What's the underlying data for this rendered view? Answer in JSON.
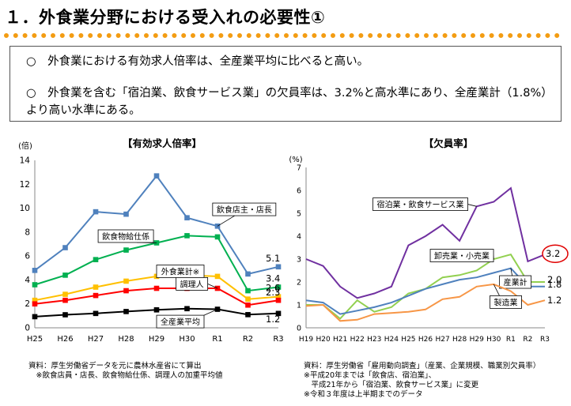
{
  "header": {
    "title": "１．外食業分野における受入れの必要性①"
  },
  "summary": {
    "bullet1": "○　外食業における有効求人倍率は、全産業平均に比べると高い。",
    "bullet2": "○　外食業を含む「宿泊業、飲食サービス業」の欠員率は、3.2%と高水準にあり、全産業計（1.8%）より高い水準にある。"
  },
  "sources": {
    "left": "資料：厚生労働省データを元に農林水産省にて算出\n　※飲食店員・店長、飲食物給仕係、調理人の加重平均値",
    "right": "資料：厚生労働省「雇用動向調査」（産業、企業規模、職業別欠員率）\n※平成20年までは「飲食店、宿泊業」、\n　平成21年から「宿泊業、飲食サービス業」に変更\n※令和３年度は上半期までのデータ"
  },
  "chart_data": [
    {
      "type": "line",
      "title": "【有効求人倍率】",
      "ylabel": "(倍)",
      "ylim": [
        0,
        14
      ],
      "yticks": [
        0,
        2,
        4,
        6,
        8,
        10,
        12,
        14
      ],
      "categories": [
        "H25",
        "H26",
        "H27",
        "H28",
        "H29",
        "H30",
        "R1",
        "R2",
        "R3"
      ],
      "series": [
        {
          "name": "飲食店主・店長",
          "color": "#4f81bd",
          "values": [
            4.8,
            6.7,
            9.7,
            9.5,
            12.7,
            9.2,
            8.5,
            4.5,
            5.1
          ],
          "end_label": "5.1"
        },
        {
          "name": "飲食物給仕係",
          "color": "#00b050",
          "values": [
            3.6,
            4.4,
            5.7,
            6.5,
            7.1,
            7.7,
            7.6,
            3.1,
            3.4
          ],
          "end_label": "3.4"
        },
        {
          "name": "外食業計※",
          "color": "#ffc000",
          "values": [
            2.3,
            2.8,
            3.4,
            3.9,
            4.3,
            4.4,
            4.3,
            2.4,
            2.6
          ],
          "end_label": "2.6"
        },
        {
          "name": "調理人",
          "color": "#ff0000",
          "values": [
            2.0,
            2.3,
            2.7,
            3.1,
            3.3,
            3.3,
            3.3,
            1.9,
            2.3
          ],
          "end_label": "2.3"
        },
        {
          "name": "全産業平均",
          "color": "#000000",
          "values": [
            0.93,
            1.09,
            1.2,
            1.36,
            1.5,
            1.6,
            1.55,
            1.1,
            1.2
          ],
          "end_label": "1.2"
        }
      ]
    },
    {
      "type": "line",
      "title": "【欠員率】",
      "ylabel": "(%)",
      "ylim": [
        0,
        7
      ],
      "yticks": [
        0,
        1,
        2,
        3,
        4,
        5,
        6,
        7
      ],
      "categories": [
        "H19",
        "H20",
        "H21",
        "H22",
        "H23",
        "H24",
        "H25",
        "H26",
        "H27",
        "H28",
        "H29",
        "H30",
        "R1",
        "R2",
        "R3"
      ],
      "series": [
        {
          "name": "宿泊業・飲食サービス業",
          "color": "#7030a0",
          "values": [
            3.0,
            2.7,
            1.8,
            1.3,
            1.5,
            1.8,
            3.6,
            4.0,
            4.5,
            3.8,
            5.3,
            5.5,
            6.1,
            2.9,
            3.2
          ],
          "end_label": "3.2"
        },
        {
          "name": "卸売業・小売業",
          "color": "#92d050",
          "values": [
            1.0,
            1.0,
            0.4,
            1.2,
            0.7,
            0.9,
            1.5,
            1.7,
            2.2,
            2.3,
            2.5,
            3.0,
            3.2,
            2.0,
            2.0
          ],
          "end_label": "2.0"
        },
        {
          "name": "産業計",
          "color": "#4f81bd",
          "values": [
            1.2,
            1.1,
            0.6,
            0.75,
            0.9,
            1.1,
            1.4,
            1.7,
            1.9,
            2.1,
            2.2,
            2.4,
            2.6,
            1.8,
            1.8
          ],
          "end_label": "1.8"
        },
        {
          "name": "製造業",
          "color": "#f79646",
          "values": [
            0.95,
            1.0,
            0.3,
            0.35,
            0.6,
            0.65,
            0.7,
            0.8,
            1.25,
            1.35,
            1.8,
            1.9,
            1.6,
            1.0,
            1.2
          ],
          "end_label": "1.2"
        }
      ]
    }
  ]
}
